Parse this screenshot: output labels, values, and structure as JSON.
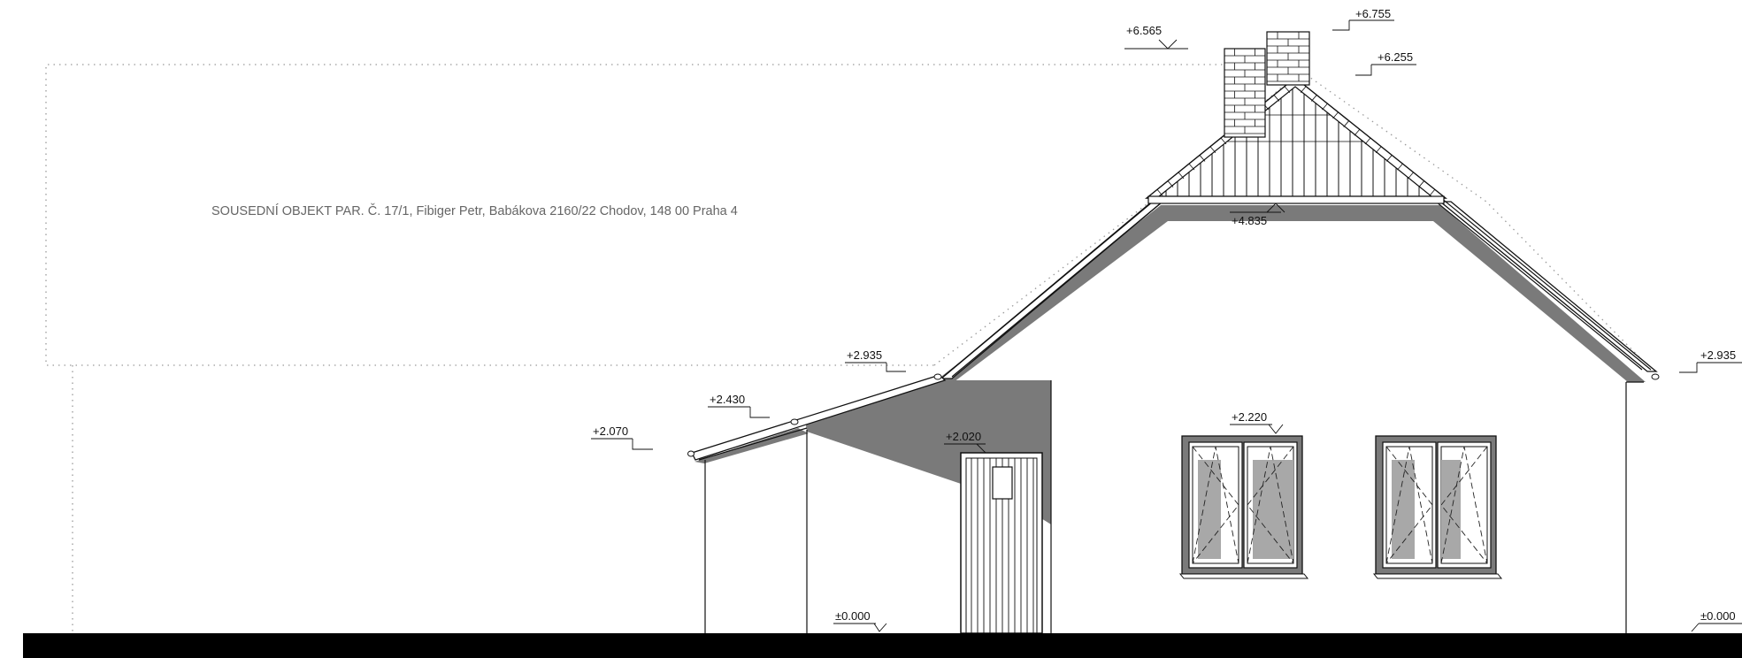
{
  "drawing": {
    "neighbour_label": "SOUSEDNÍ OBJEKT PAR. Č. 17/1, Fibiger Petr, Babákova 2160/22 Chodov, 148 00 Praha 4",
    "levels": {
      "chimney_left_top": "+6.565",
      "chimney_right_top": "+6.755",
      "ridge": "+6.255",
      "gable_base": "+4.835",
      "eave_left": "+2.935",
      "eave_right": "+2.935",
      "annex_eave_mid": "+2.430",
      "annex_eave_low": "+2.070",
      "door_head": "+2.020",
      "window_head": "+2.220",
      "ground_left": "±0.000",
      "ground_right": "±0.000"
    },
    "colors": {
      "line": "#111111",
      "shadow": "#7a7a7a",
      "ground": "#000000",
      "neighbour_outline": "#9a9a9a",
      "neighbour_text": "#666666"
    }
  }
}
